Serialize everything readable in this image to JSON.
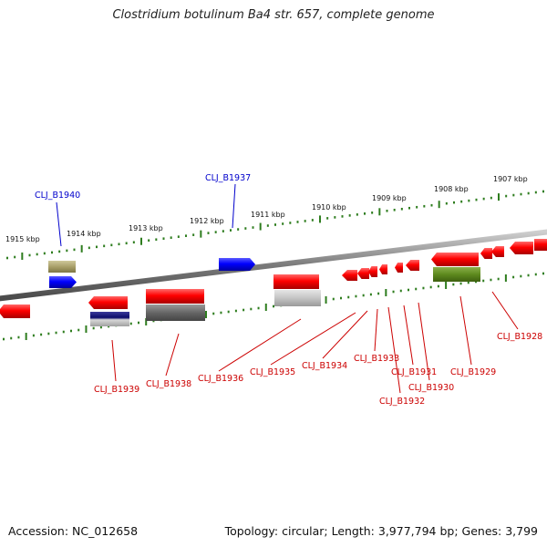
{
  "title": "Clostridium botulinum Ba4 str. 657, complete genome",
  "footer": {
    "accession": "Accession: NC_012658",
    "summary": "Topology: circular; Length: 3,977,794 bp; Genes: 3,799"
  },
  "colors": {
    "backbone": "#888888",
    "forward_gene": "#ff0000",
    "highlight_gene": "#0000ff",
    "tick": "#2e7d1e",
    "label_highlight": "#0000cc",
    "label_default": "#cc0000"
  },
  "scale": {
    "unit": "kbp",
    "ticks": [
      {
        "label": "1915 kbp"
      },
      {
        "label": "1914 kbp"
      },
      {
        "label": "1913 kbp"
      },
      {
        "label": "1912 kbp"
      },
      {
        "label": "1911 kbp"
      },
      {
        "label": "1910 kbp"
      },
      {
        "label": "1909 kbp"
      },
      {
        "label": "1908 kbp"
      },
      {
        "label": "1907 kbp"
      }
    ]
  },
  "genes": [
    {
      "label": "CLJ_B1940",
      "highlight": true
    },
    {
      "label": "CLJ_B1937",
      "highlight": true
    },
    {
      "label": "CLJ_B1939",
      "highlight": false
    },
    {
      "label": "CLJ_B1938",
      "highlight": false
    },
    {
      "label": "CLJ_B1936",
      "highlight": false
    },
    {
      "label": "CLJ_B1935",
      "highlight": false
    },
    {
      "label": "CLJ_B1934",
      "highlight": false
    },
    {
      "label": "CLJ_B1933",
      "highlight": false
    },
    {
      "label": "CLJ_B1932",
      "highlight": false
    },
    {
      "label": "CLJ_B1931",
      "highlight": false
    },
    {
      "label": "CLJ_B1930",
      "highlight": false
    },
    {
      "label": "CLJ_B1929",
      "highlight": false
    },
    {
      "label": "CLJ_B1928",
      "highlight": false
    }
  ]
}
